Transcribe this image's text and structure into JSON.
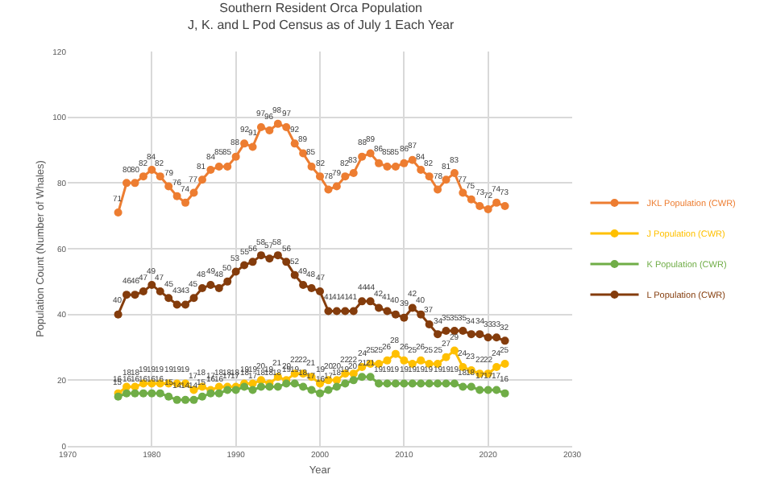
{
  "chart_data": {
    "type": "line",
    "title": "Southern Resident Orca Population",
    "subtitle": "J, K. and L Pod Census as of July 1 Each Year",
    "xlabel": "Year",
    "ylabel": "Population Count (Number of Whales)",
    "x": [
      1976,
      1977,
      1978,
      1979,
      1980,
      1981,
      1982,
      1983,
      1984,
      1985,
      1986,
      1987,
      1988,
      1989,
      1990,
      1991,
      1992,
      1993,
      1994,
      1995,
      1996,
      1997,
      1998,
      1999,
      2000,
      2001,
      2002,
      2003,
      2004,
      2005,
      2006,
      2007,
      2008,
      2009,
      2010,
      2011,
      2012,
      2013,
      2014,
      2015,
      2016,
      2017,
      2018,
      2019,
      2020,
      2021,
      2022
    ],
    "series": [
      {
        "name": "JKL Population (CWR)",
        "color": "#ed7d31",
        "values": [
          71,
          80,
          80,
          82,
          84,
          82,
          79,
          76,
          74,
          77,
          81,
          84,
          85,
          85,
          88,
          92,
          91,
          97,
          96,
          98,
          97,
          92,
          89,
          85,
          82,
          78,
          79,
          82,
          83,
          88,
          89,
          86,
          85,
          85,
          86,
          87,
          84,
          82,
          78,
          81,
          83,
          77,
          75,
          73,
          72,
          74,
          73
        ]
      },
      {
        "name": "J Population (CWR)",
        "color": "#ffc000",
        "values": [
          16,
          18,
          18,
          19,
          19,
          19,
          19,
          19,
          19,
          17,
          18,
          17,
          18,
          18,
          18,
          19,
          19,
          20,
          19,
          21,
          20,
          22,
          22,
          21,
          19,
          20,
          20,
          22,
          22,
          24,
          25,
          25,
          26,
          28,
          26,
          25,
          26,
          25,
          25,
          27,
          29,
          24,
          23,
          22,
          22,
          24,
          25
        ]
      },
      {
        "name": "K Population (CWR)",
        "color": "#70ad47",
        "values": [
          15,
          16,
          16,
          16,
          16,
          16,
          15,
          14,
          14,
          14,
          15,
          16,
          16,
          17,
          17,
          18,
          17,
          18,
          18,
          18,
          19,
          19,
          18,
          17,
          16,
          17,
          18,
          19,
          20,
          21,
          21,
          19,
          19,
          19,
          19,
          19,
          19,
          19,
          19,
          19,
          19,
          18,
          18,
          17,
          17,
          17,
          16
        ]
      },
      {
        "name": "L Population (CWR)",
        "color": "#843c0c",
        "values": [
          40,
          46,
          46,
          47,
          49,
          47,
          45,
          43,
          43,
          45,
          48,
          49,
          48,
          50,
          53,
          55,
          56,
          58,
          57,
          58,
          56,
          52,
          49,
          48,
          47,
          41,
          41,
          41,
          41,
          44,
          44,
          42,
          41,
          40,
          39,
          42,
          40,
          37,
          34,
          35,
          35,
          35,
          34,
          34,
          33,
          33,
          32
        ]
      }
    ],
    "xlim": [
      1970,
      2030
    ],
    "xticks": [
      1970,
      1980,
      1990,
      2000,
      2010,
      2020,
      2030
    ],
    "ylim": [
      0,
      120
    ],
    "yticks": [
      0,
      20,
      40,
      60,
      80,
      100,
      120
    ],
    "grid": true,
    "legend": "right",
    "marker": "circle",
    "line_style": "solid",
    "data_labels": true
  }
}
